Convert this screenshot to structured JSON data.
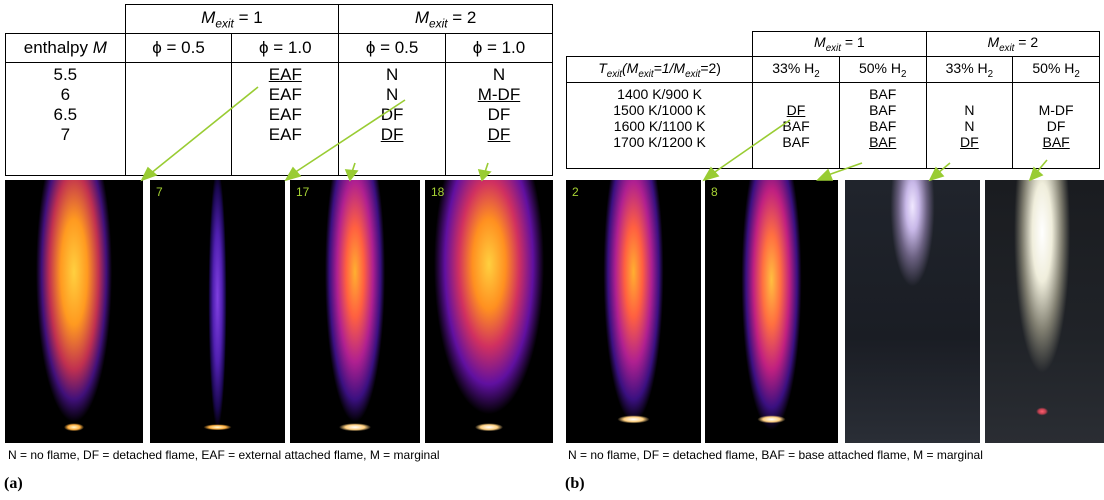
{
  "table_a": {
    "header_mexit1": "M",
    "header_mexit1_sub": "exit",
    "header_mexit1_val": " = 1",
    "header_mexit2": "M",
    "header_mexit2_sub": "exit",
    "header_mexit2_val": " = 2",
    "row_label_pre": "enthalpy ",
    "row_label_var": "M",
    "phi_cols": [
      "ϕ  = 0.5",
      "ϕ  = 1.0",
      "ϕ  = 0.5",
      "ϕ  = 1.0"
    ],
    "enthalpy_values": [
      "5.5",
      "6",
      "6.5",
      "7"
    ],
    "cells": [
      [
        "",
        "",
        "",
        ""
      ],
      [
        "EAF",
        "EAF",
        "EAF",
        "EAF"
      ],
      [
        "N",
        "N",
        "DF",
        "DF"
      ],
      [
        "N",
        "M-DF",
        "DF",
        "DF"
      ]
    ]
  },
  "table_b": {
    "header_mexit1": "M",
    "header_mexit1_sub": "exit",
    "header_mexit1_val": " = 1",
    "header_mexit2": "M",
    "header_mexit2_sub": "exit",
    "header_mexit2_val": " = 2",
    "row_label": "T",
    "row_label_sub": "exit",
    "row_label_rest_a": "(M",
    "row_label_rest_b": "=1/M",
    "row_label_rest_c": "=2)",
    "h2_cols": [
      "33% H",
      "50% H",
      "33% H",
      "50% H"
    ],
    "h2_sub": "2",
    "temps": [
      "1400 K/900 K",
      "1500 K/1000 K",
      "1600 K/1100 K",
      "1700 K/1200 K"
    ],
    "cells": [
      [
        "",
        "DF",
        "BAF",
        "BAF"
      ],
      [
        "BAF",
        "BAF",
        "BAF",
        "BAF"
      ],
      [
        "",
        "N",
        "N",
        "DF"
      ],
      [
        "",
        "M-DF",
        "DF",
        "BAF"
      ]
    ]
  },
  "panels_a": [
    "",
    "7",
    "17",
    "18"
  ],
  "panels_b": [
    "2",
    "8",
    "",
    ""
  ],
  "caption_a": "N = no flame, DF = detached flame, EAF = external attached flame, M = marginal",
  "caption_b": "N = no flame, DF = detached flame, BAF = base attached flame, M = marginal",
  "label_a": "(a)",
  "label_b": "(b)",
  "colors": {
    "arrow": "#99cc33",
    "panel_number": "#a6d234"
  }
}
